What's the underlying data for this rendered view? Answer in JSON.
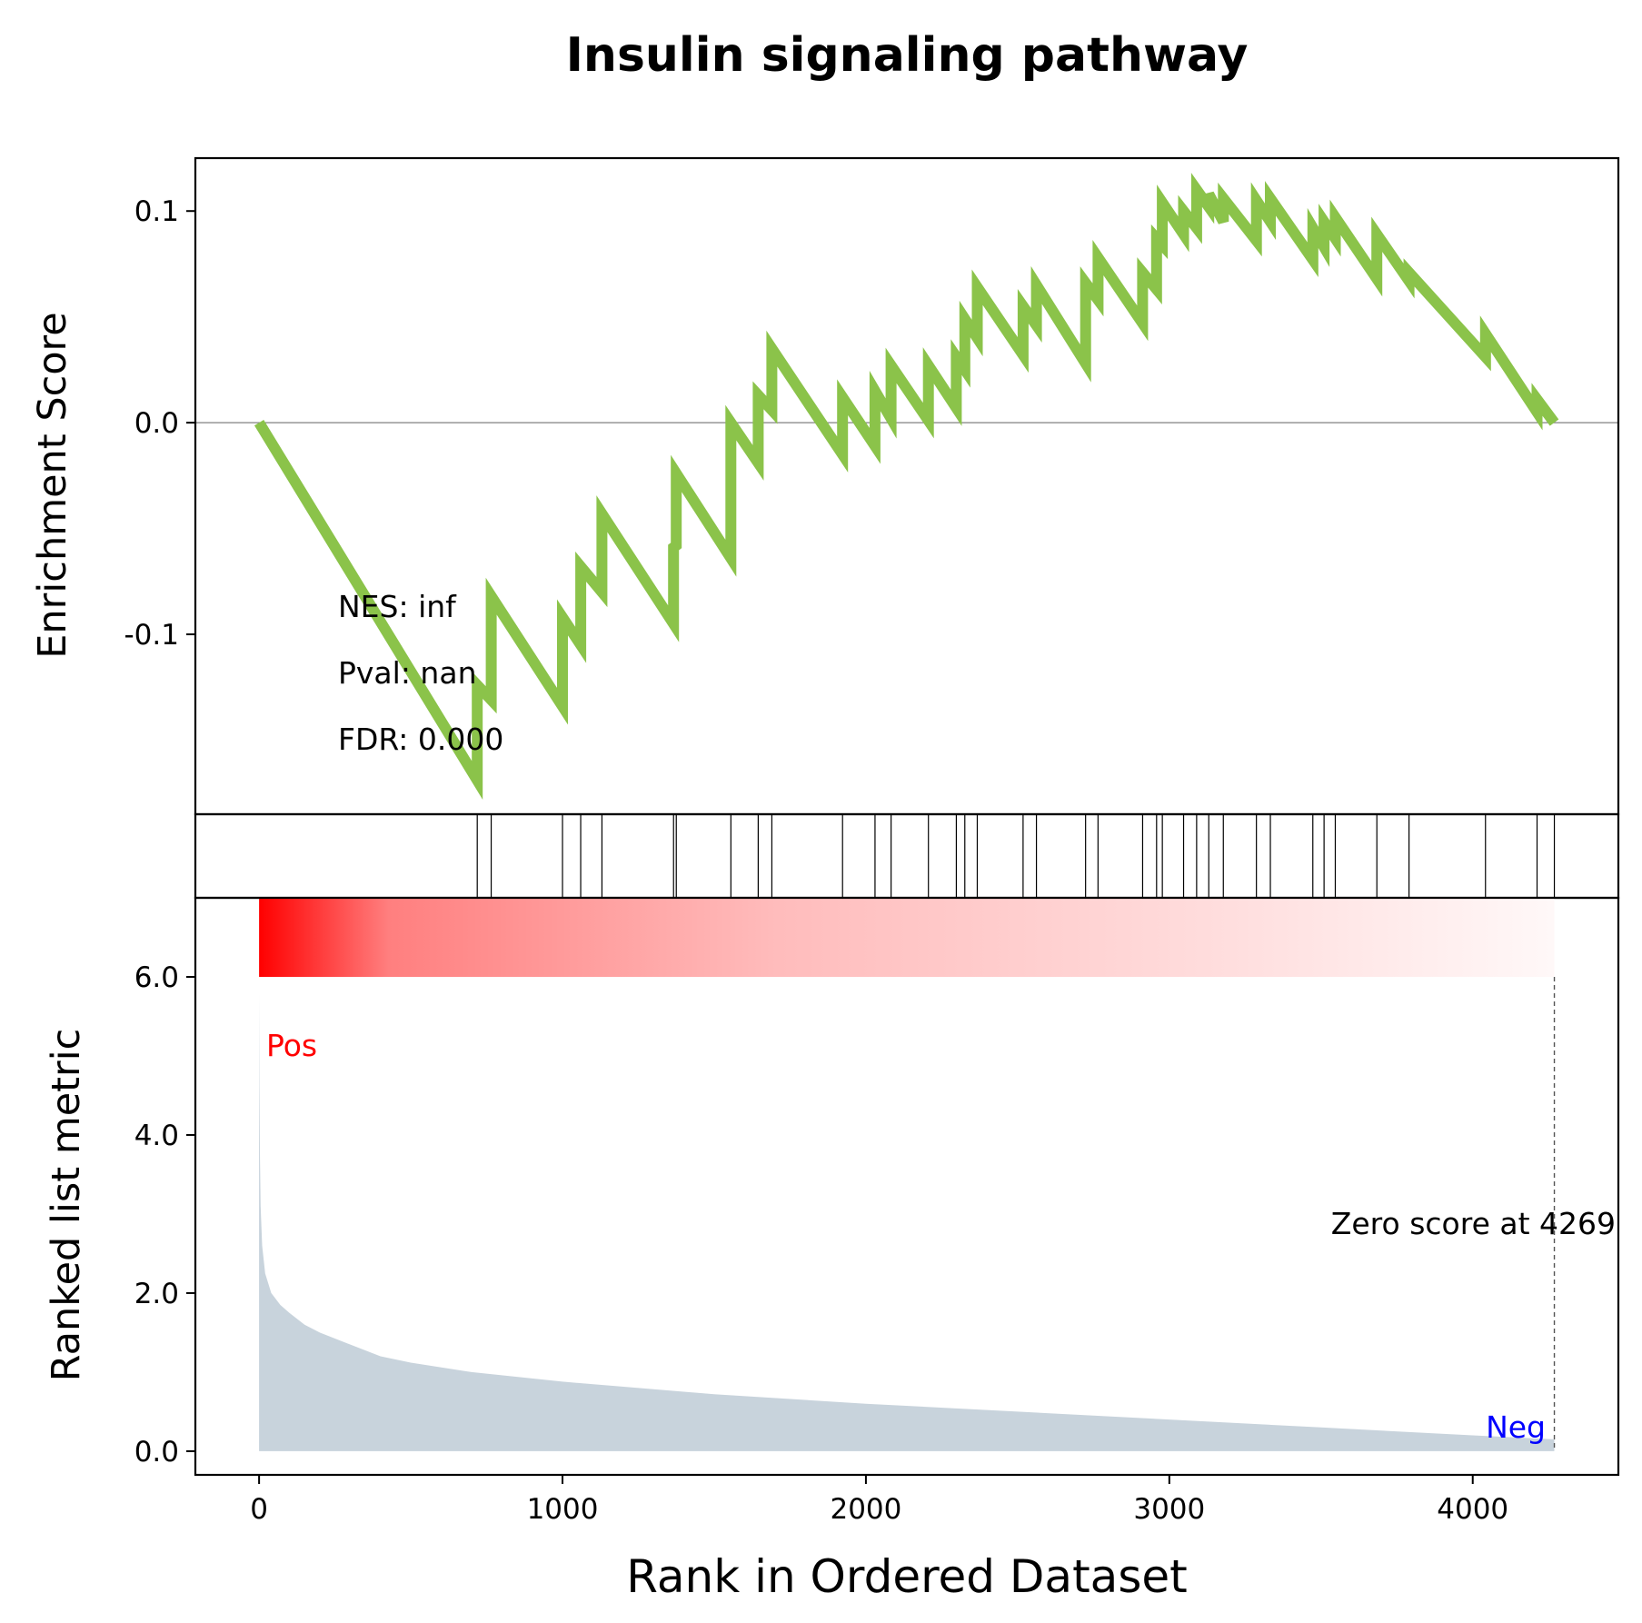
{
  "colors": {
    "es_line": "#8bc34a",
    "hit_line": "#000000",
    "metric_fill": "#c8d3dc",
    "pos_label": "#ff0000",
    "neg_label": "#0000ff",
    "gradient_start": "#ff0000",
    "gradient_end": "#fff8f8",
    "zero_line": "#808080"
  },
  "chart_data": {
    "type": "line",
    "title": "Insulin signaling pathway",
    "xlabel": "Rank in Ordered Dataset",
    "top_panel": {
      "ylabel": "Enrichment Score",
      "ylim": [
        -0.185,
        0.125
      ],
      "yticks": [
        0.1,
        0.0,
        -0.1
      ],
      "ytick_labels": [
        "0.1",
        "0.0",
        "-0.1"
      ],
      "zero_line": true,
      "annotations": [
        "NES: inf",
        "Pval: nan",
        "FDR: 0.000"
      ],
      "series": [
        {
          "x": [
            0,
            719,
            719,
            765,
            765,
            1000,
            1000,
            1060,
            1060,
            1130,
            1130,
            1366,
            1366,
            1375,
            1375,
            1555,
            1555,
            1645,
            1645,
            1690,
            1690,
            1923,
            1923,
            2030,
            2030,
            2083,
            2083,
            2206,
            2206,
            2298,
            2298,
            2326,
            2326,
            2367,
            2367,
            2518,
            2518,
            2562,
            2562,
            2724,
            2724,
            2765,
            2765,
            2912,
            2912,
            2958,
            2958,
            2977,
            2977,
            3047,
            3047,
            3090,
            3090,
            3130,
            3130,
            3178,
            3178,
            3287,
            3287,
            3333,
            3333,
            3473,
            3473,
            3510,
            3510,
            3547,
            3547,
            3684,
            3684,
            3790,
            3790,
            4042,
            4042,
            4212,
            4212,
            4269
          ],
          "y": [
            0.0,
            -0.169,
            -0.124,
            -0.131,
            -0.082,
            -0.134,
            -0.092,
            -0.105,
            -0.068,
            -0.08,
            -0.043,
            -0.095,
            -0.059,
            -0.058,
            -0.024,
            -0.064,
            0.0,
            -0.019,
            0.013,
            0.006,
            0.035,
            -0.015,
            0.012,
            -0.011,
            0.015,
            0.002,
            0.027,
            0.001,
            0.027,
            0.007,
            0.031,
            0.025,
            0.049,
            0.04,
            0.064,
            0.032,
            0.055,
            0.046,
            0.065,
            0.028,
            0.066,
            0.058,
            0.078,
            0.047,
            0.071,
            0.063,
            0.087,
            0.084,
            0.104,
            0.089,
            0.1,
            0.092,
            0.11,
            0.102,
            0.108,
            0.095,
            0.106,
            0.086,
            0.105,
            0.095,
            0.106,
            0.077,
            0.092,
            0.083,
            0.095,
            0.087,
            0.097,
            0.068,
            0.089,
            0.067,
            0.071,
            0.031,
            0.042,
            0.005,
            0.011,
            0.0
          ]
        }
      ]
    },
    "hits_panel": {
      "hits": [
        719,
        765,
        1000,
        1060,
        1130,
        1366,
        1375,
        1555,
        1645,
        1690,
        1923,
        2030,
        2083,
        2206,
        2298,
        2326,
        2367,
        2518,
        2562,
        2724,
        2765,
        2912,
        2958,
        2977,
        3047,
        3090,
        3130,
        3178,
        3287,
        3333,
        3473,
        3510,
        3547,
        3684,
        3790,
        4042,
        4212,
        4269
      ]
    },
    "bottom_panel": {
      "type": "area",
      "ylabel": "Ranked list metric",
      "ylim": [
        -0.3,
        7.0
      ],
      "yticks": [
        0.0,
        2.0,
        4.0,
        6.0
      ],
      "ytick_labels": [
        "0.0",
        "2.0",
        "4.0",
        "6.0"
      ],
      "x": [
        0,
        1,
        3,
        5,
        10,
        20,
        40,
        70,
        100,
        150,
        200,
        300,
        400,
        500,
        700,
        1000,
        1500,
        2000,
        2500,
        3000,
        3500,
        4000,
        4269
      ],
      "values": [
        5.8,
        4.6,
        3.7,
        3.1,
        2.6,
        2.25,
        2.0,
        1.85,
        1.75,
        1.6,
        1.5,
        1.35,
        1.2,
        1.12,
        1.0,
        0.88,
        0.72,
        0.6,
        0.5,
        0.4,
        0.3,
        0.2,
        0.15
      ],
      "pos_label": "Pos",
      "neg_label": "Neg",
      "zero_score_label": "Zero score at 4269",
      "zero_score_at": 4269
    },
    "xlim": [
      -210,
      4480
    ],
    "xticks": [
      0,
      1000,
      2000,
      3000,
      4000
    ],
    "xtick_labels": [
      "0",
      "1000",
      "2000",
      "3000",
      "4000"
    ]
  }
}
